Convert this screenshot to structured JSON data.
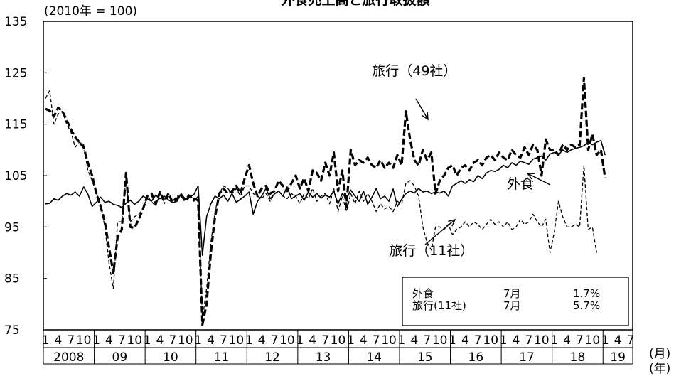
{
  "chart_data": {
    "type": "line",
    "title": "外食売上高と旅行取扱額",
    "ylabel": "(2010年 = 100)",
    "ylim": [
      75,
      135
    ],
    "yticks": [
      "135",
      "125",
      "115",
      "105",
      "95",
      "85",
      "75"
    ],
    "x_month_tick_labels": [
      "1",
      "4",
      "7",
      "10"
    ],
    "x_last_year_month_labels": [
      "1",
      "4",
      "7"
    ],
    "years": [
      "2008",
      "09",
      "10",
      "11",
      "12",
      "13",
      "14",
      "15",
      "16",
      "17",
      "18",
      "19"
    ],
    "x_unit_month": "(月)",
    "x_unit_year": "(年)",
    "start": "2008-01",
    "grid": false,
    "legend": "annotations",
    "series": [
      {
        "name": "外食",
        "style": "solid",
        "values": [
          99.5,
          99.6,
          100.5,
          100.2,
          101.0,
          101.5,
          101.2,
          101.8,
          101.0,
          102.8,
          101.4,
          99.0,
          99.8,
          100.8,
          99.8,
          100.0,
          99.4,
          99.2,
          98.8,
          99.6,
          100.2,
          99.4,
          100.0,
          101.0,
          100.5,
          100.0,
          101.2,
          100.5,
          101.0,
          100.3,
          99.7,
          100.0,
          101.5,
          100.4,
          100.8,
          101.3,
          103.0,
          89.5,
          97.0,
          99.5,
          101.0,
          100.5,
          101.2,
          100.0,
          101.5,
          99.8,
          100.4,
          101.0,
          101.8,
          97.5,
          100.0,
          101.0,
          102.5,
          100.5,
          101.4,
          102.0,
          101.0,
          102.8,
          100.5,
          101.0,
          101.5,
          100.2,
          101.8,
          100.8,
          101.5,
          100.6,
          101.2,
          100.8,
          102.0,
          99.5,
          101.5,
          100.5,
          102.2,
          101.0,
          100.0,
          102.0,
          99.4,
          100.8,
          102.5,
          100.5,
          101.0,
          100.0,
          102.4,
          99.0,
          100.4,
          101.5,
          102.0,
          101.6,
          102.5,
          101.8,
          102.0,
          101.5,
          101.8,
          101.6,
          102.0,
          101.0,
          103.0,
          103.5,
          104.0,
          103.5,
          104.2,
          103.8,
          105.0,
          104.4,
          105.5,
          106.0,
          105.8,
          106.2,
          107.0,
          106.5,
          107.5,
          107.0,
          107.8,
          107.5,
          107.2,
          108.2,
          108.5,
          108.8,
          108.0,
          109.2,
          109.5,
          109.0,
          110.0,
          109.5,
          110.0,
          110.3,
          110.5,
          110.8,
          111.5,
          111.0,
          111.5,
          111.8,
          109.0
        ]
      },
      {
        "name": "旅行（49社）",
        "style": "dashed-bold",
        "values": [
          118.0,
          117.6,
          116.5,
          118.2,
          117.5,
          115.8,
          114.0,
          112.5,
          111.5,
          110.5,
          107.5,
          105.0,
          101.5,
          99.0,
          96.0,
          91.0,
          86.0,
          93.0,
          94.5,
          105.5,
          95.0,
          94.8,
          96.5,
          98.5,
          101.0,
          101.5,
          99.5,
          101.8,
          100.0,
          101.5,
          99.8,
          100.5,
          101.2,
          100.0,
          101.0,
          100.5,
          100.2,
          76.0,
          80.0,
          90.0,
          97.0,
          101.5,
          102.5,
          101.5,
          102.0,
          103.0,
          101.5,
          104.5,
          107.0,
          103.5,
          101.0,
          102.5,
          103.0,
          101.5,
          102.0,
          104.0,
          103.0,
          102.0,
          103.5,
          105.0,
          102.5,
          104.5,
          102.0,
          106.0,
          105.5,
          104.0,
          107.5,
          105.0,
          109.5,
          102.0,
          106.0,
          99.0,
          110.0,
          107.0,
          108.0,
          107.5,
          108.5,
          107.0,
          106.5,
          108.0,
          106.5,
          107.5,
          106.5,
          109.0,
          107.0,
          117.5,
          112.0,
          108.0,
          107.0,
          110.0,
          108.0,
          109.5,
          101.5,
          104.0,
          105.0,
          106.5,
          107.0,
          105.0,
          106.5,
          107.0,
          106.0,
          107.5,
          108.0,
          107.0,
          108.5,
          109.0,
          108.0,
          109.5,
          108.5,
          108.0,
          110.0,
          109.0,
          108.5,
          110.5,
          109.0,
          111.0,
          110.0,
          105.0,
          112.0,
          110.0,
          110.0,
          109.0,
          111.0,
          110.0,
          111.0,
          110.5,
          111.0,
          124.0,
          110.0,
          113.0,
          109.0,
          110.0,
          104.5
        ]
      },
      {
        "name": "旅行（11社）",
        "style": "dashed-thin",
        "values": [
          120.0,
          121.5,
          115.0,
          117.0,
          117.5,
          115.0,
          113.5,
          110.5,
          111.5,
          111.0,
          106.0,
          104.0,
          101.5,
          99.5,
          95.0,
          88.0,
          83.0,
          96.0,
          96.0,
          104.5,
          96.0,
          97.0,
          97.5,
          98.5,
          101.0,
          100.0,
          99.0,
          101.5,
          99.5,
          101.5,
          100.0,
          101.0,
          101.0,
          100.5,
          101.5,
          100.0,
          101.0,
          77.0,
          83.0,
          92.0,
          98.0,
          101.5,
          103.0,
          102.5,
          101.5,
          102.5,
          101.0,
          103.0,
          103.0,
          101.5,
          101.0,
          100.5,
          101.5,
          100.0,
          101.5,
          102.0,
          101.0,
          100.5,
          101.5,
          101.0,
          99.5,
          101.5,
          100.5,
          102.5,
          100.0,
          101.0,
          101.5,
          99.5,
          102.5,
          98.0,
          101.0,
          98.0,
          101.5,
          99.5,
          102.0,
          100.0,
          101.5,
          100.0,
          98.0,
          99.5,
          98.5,
          99.0,
          98.0,
          100.0,
          99.5,
          103.5,
          104.0,
          103.0,
          101.0,
          95.0,
          92.0,
          90.5,
          95.0,
          95.0,
          94.5,
          95.5,
          93.5,
          94.5,
          95.0,
          96.0,
          95.0,
          96.0,
          95.5,
          94.5,
          95.5,
          96.5,
          95.5,
          96.0,
          95.0,
          96.0,
          94.5,
          95.0,
          96.5,
          95.5,
          96.0,
          97.5,
          96.0,
          95.0,
          96.5,
          90.0,
          94.0,
          100.0,
          97.0,
          95.0,
          95.0,
          95.5,
          95.0,
          107.0,
          94.5,
          95.0,
          90.0
        ]
      }
    ],
    "annotations": [
      {
        "text": "旅行（49社）",
        "x": "2015-04",
        "y": 124.5
      },
      {
        "text": "外食",
        "x": "2017-05",
        "y": 102.5
      },
      {
        "text": "旅行（11社）",
        "x": "2015-08",
        "y": 89.5
      }
    ],
    "legend_box": {
      "rows": [
        {
          "name": "外食",
          "month": "7月",
          "value": "1.7%"
        },
        {
          "name": "旅行(11社)",
          "month": "7月",
          "value": "5.7%"
        }
      ]
    }
  }
}
